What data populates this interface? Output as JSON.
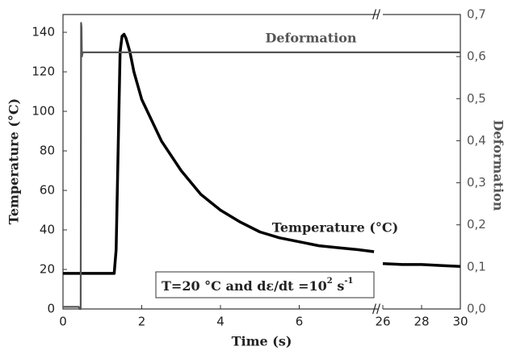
{
  "chart_data": {
    "type": "line",
    "x_label": "Time (s)",
    "y_label": "Temperature (°C)",
    "y2_label": "Deformation",
    "x_segments": [
      {
        "xlim": [
          0,
          8
        ],
        "xticks": [
          0,
          2,
          4,
          6
        ]
      },
      {
        "xlim": [
          26,
          30
        ],
        "xticks": [
          26,
          28,
          30
        ]
      }
    ],
    "ylim": [
      0,
      149
    ],
    "yticks": [
      0,
      20,
      40,
      60,
      80,
      100,
      120,
      140
    ],
    "y2lim": [
      0,
      0.7
    ],
    "y2ticks": [
      {
        "value": 0,
        "label": "0,0"
      },
      {
        "value": 0.1,
        "label": "0,1"
      },
      {
        "value": 0.2,
        "label": "0,2"
      },
      {
        "value": 0.3,
        "label": "0,3"
      },
      {
        "value": 0.4,
        "label": "0,4"
      },
      {
        "value": 0.5,
        "label": "0,5"
      },
      {
        "value": 0.6,
        "label": "0,6"
      },
      {
        "value": 0.7,
        "label": "0,7"
      }
    ],
    "series": [
      {
        "name": "Temperature (°C)",
        "color": "#000000",
        "x": [
          0,
          1.3,
          1.35,
          1.45,
          1.5,
          1.55,
          1.6,
          1.7,
          1.8,
          2,
          2.5,
          3,
          3.5,
          4,
          4.5,
          5,
          5.5,
          6,
          6.5,
          7,
          7.5,
          7.9,
          8,
          26,
          27,
          28,
          29,
          30
        ],
        "values": [
          18,
          18,
          30,
          130,
          138,
          139,
          137,
          130,
          120,
          106,
          85,
          70,
          58,
          50,
          44,
          39,
          36,
          34,
          32,
          31,
          30,
          29,
          null,
          23,
          22.5,
          22.5,
          22,
          21.5
        ]
      },
      {
        "name": "Deformation",
        "color": "#555555",
        "axis": "y2",
        "x": [
          0,
          0.4,
          0.42,
          0.45,
          0.46,
          0.47,
          0.48,
          0.5,
          1,
          8,
          26,
          30
        ],
        "values": [
          0.005,
          0.005,
          0,
          0,
          0.68,
          0.67,
          0.6,
          0.61,
          0.61,
          0.61,
          0.61,
          0.61
        ]
      }
    ],
    "box_text": [
      "T=20 °C and dε/dt =10",
      "2",
      " s",
      "-1"
    ]
  }
}
